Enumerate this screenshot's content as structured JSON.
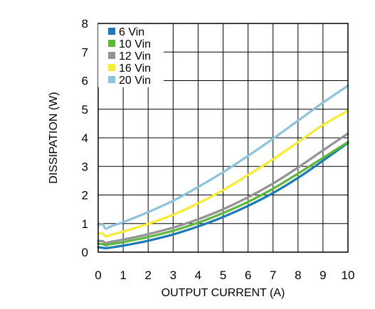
{
  "chart_data": {
    "type": "line",
    "title": "",
    "xlabel": "OUTPUT CURRENT (A)",
    "ylabel": "DISSIPATION (W)",
    "xlim": [
      0,
      10
    ],
    "ylim": [
      0,
      8
    ],
    "xticks": [
      0,
      1,
      2,
      3,
      4,
      5,
      6,
      7,
      8,
      9,
      10
    ],
    "yticks": [
      0,
      1,
      2,
      3,
      4,
      5,
      6,
      7,
      8
    ],
    "grid": true,
    "legend_position": "top-left",
    "series": [
      {
        "name": "6 Vin",
        "color": "#1a7ab8",
        "x": [
          0,
          0.1,
          0.2,
          0.3,
          0.5,
          1,
          1.5,
          2,
          3,
          4,
          5,
          6,
          7,
          8,
          9,
          10
        ],
        "y": [
          0.17,
          0.16,
          0.15,
          0.14,
          0.16,
          0.23,
          0.31,
          0.4,
          0.62,
          0.9,
          1.23,
          1.62,
          2.07,
          2.6,
          3.2,
          3.82
        ]
      },
      {
        "name": "10 Vin",
        "color": "#5cb83a",
        "x": [
          0,
          0.1,
          0.2,
          0.3,
          0.5,
          1,
          1.5,
          2,
          3,
          4,
          5,
          6,
          7,
          8,
          9,
          10
        ],
        "y": [
          0.3,
          0.29,
          0.28,
          0.24,
          0.28,
          0.35,
          0.44,
          0.53,
          0.75,
          1.03,
          1.37,
          1.76,
          2.22,
          2.75,
          3.3,
          3.85
        ]
      },
      {
        "name": "12 Vin",
        "color": "#939393",
        "x": [
          0,
          0.1,
          0.2,
          0.3,
          0.5,
          1,
          1.5,
          2,
          3,
          4,
          5,
          6,
          7,
          8,
          9,
          10
        ],
        "y": [
          0.4,
          0.39,
          0.38,
          0.32,
          0.36,
          0.44,
          0.53,
          0.63,
          0.86,
          1.15,
          1.5,
          1.92,
          2.4,
          2.96,
          3.56,
          4.15
        ]
      },
      {
        "name": "16 Vin",
        "color": "#f7ec2e",
        "x": [
          0,
          0.1,
          0.2,
          0.3,
          0.5,
          1,
          1.5,
          2,
          3,
          4,
          5,
          6,
          7,
          8,
          9,
          10
        ],
        "y": [
          0.65,
          0.66,
          0.64,
          0.55,
          0.6,
          0.72,
          0.85,
          0.99,
          1.31,
          1.71,
          2.17,
          2.7,
          3.25,
          3.85,
          4.45,
          4.95
        ]
      },
      {
        "name": "20 Vin",
        "color": "#8cc3de",
        "x": [
          0,
          0.1,
          0.2,
          0.3,
          0.5,
          1,
          1.5,
          2,
          3,
          4,
          5,
          6,
          7,
          8,
          9,
          10
        ],
        "y": [
          0.95,
          0.97,
          0.96,
          0.82,
          0.9,
          1.05,
          1.22,
          1.4,
          1.8,
          2.28,
          2.8,
          3.37,
          3.97,
          4.6,
          5.23,
          5.82
        ]
      }
    ]
  }
}
